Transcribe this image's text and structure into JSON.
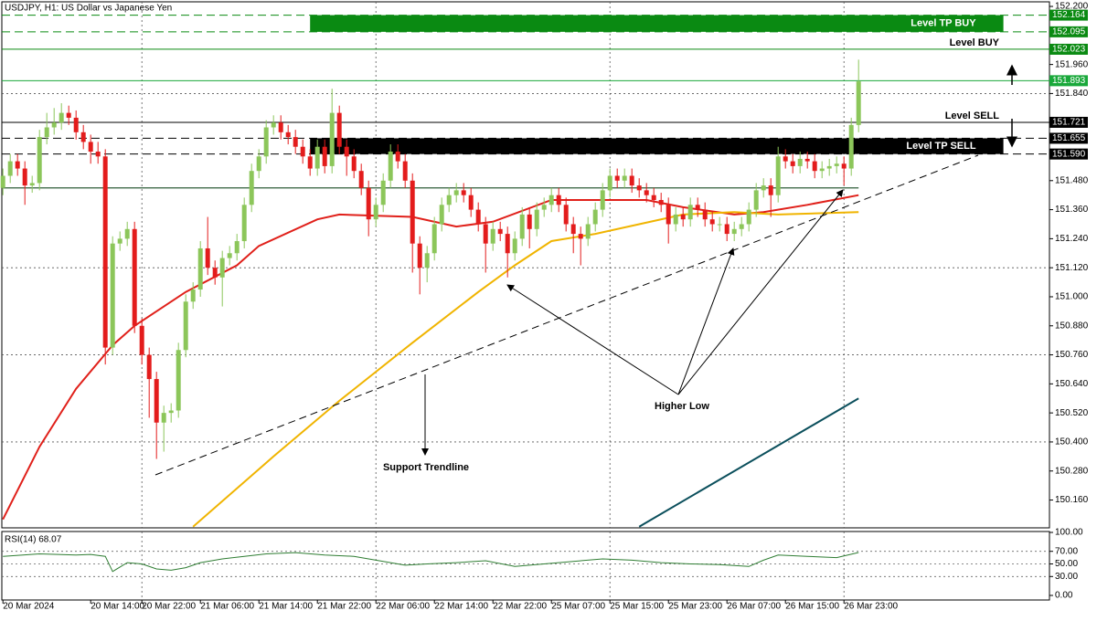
{
  "chart_data": [
    {
      "type": "candlestick",
      "title": "USDJPY, H1: US Dollar vs Japanese Yen",
      "up_color": "#8cc65a",
      "down_color": "#e31c1c",
      "xlim": [
        -0.4,
        143.1
      ],
      "ylim": [
        150.045,
        152.219
      ],
      "xticks": [
        {
          "value": 0,
          "label": "20 Mar 2024"
        },
        {
          "value": 12,
          "label": "20 Mar 14:00"
        },
        {
          "value": 19,
          "label": "20 Mar 22:00"
        },
        {
          "value": 27,
          "label": "21 Mar 06:00"
        },
        {
          "value": 35,
          "label": "21 Mar 14:00"
        },
        {
          "value": 43,
          "label": "21 Mar 22:00"
        },
        {
          "value": 51,
          "label": "22 Mar 06:00"
        },
        {
          "value": 59,
          "label": "22 Mar 14:00"
        },
        {
          "value": 67,
          "label": "22 Mar 22:00"
        },
        {
          "value": 75,
          "label": "25 Mar 07:00"
        },
        {
          "value": 83,
          "label": "25 Mar 15:00"
        },
        {
          "value": 91,
          "label": "25 Mar 23:00"
        },
        {
          "value": 99,
          "label": "26 Mar 07:00"
        },
        {
          "value": 107,
          "label": "26 Mar 15:00"
        },
        {
          "value": 115,
          "label": "26 Mar 23:00"
        }
      ],
      "yticks": [
        {
          "value": 152.2,
          "label": "152.200"
        },
        {
          "value": 151.96,
          "label": "151.960"
        },
        {
          "value": 151.84,
          "label": "151.840"
        },
        {
          "value": 151.48,
          "label": "151.480"
        },
        {
          "value": 151.36,
          "label": "151.360"
        },
        {
          "value": 151.24,
          "label": "151.240"
        },
        {
          "value": 151.12,
          "label": "151.120"
        },
        {
          "value": 151,
          "label": "151.000"
        },
        {
          "value": 150.88,
          "label": "150.880"
        },
        {
          "value": 150.76,
          "label": "150.760"
        },
        {
          "value": 150.64,
          "label": "150.640"
        },
        {
          "value": 150.52,
          "label": "150.520"
        },
        {
          "value": 150.4,
          "label": "150.400"
        },
        {
          "value": 150.28,
          "label": "150.280"
        },
        {
          "value": 150.16,
          "label": "150.160"
        }
      ],
      "candles": [
        [
          151.45,
          151.53,
          151.42,
          151.5
        ],
        [
          151.5,
          151.59,
          151.47,
          151.56
        ],
        [
          151.56,
          151.59,
          151.5,
          151.53
        ],
        [
          151.53,
          151.56,
          151.38,
          151.46
        ],
        [
          151.46,
          151.5,
          151.43,
          151.47
        ],
        [
          151.47,
          151.69,
          151.44,
          151.66
        ],
        [
          151.66,
          151.76,
          151.63,
          151.7
        ],
        [
          151.7,
          151.78,
          151.67,
          151.72
        ],
        [
          151.72,
          151.8,
          151.69,
          151.76
        ],
        [
          151.76,
          151.79,
          151.71,
          151.74
        ],
        [
          151.74,
          151.77,
          151.65,
          151.68
        ],
        [
          151.68,
          151.71,
          151.61,
          151.64
        ],
        [
          151.64,
          151.67,
          151.55,
          151.6
        ],
        [
          151.6,
          151.64,
          151.55,
          151.58
        ],
        [
          151.58,
          151.61,
          150.72,
          150.79
        ],
        [
          150.79,
          151.25,
          150.76,
          151.22
        ],
        [
          151.22,
          151.27,
          151.19,
          151.24
        ],
        [
          151.24,
          151.31,
          151.21,
          151.28
        ],
        [
          151.28,
          151.31,
          150.85,
          150.88
        ],
        [
          150.88,
          150.91,
          150.72,
          150.76
        ],
        [
          150.76,
          150.79,
          150.5,
          150.66
        ],
        [
          150.66,
          150.69,
          150.33,
          150.48
        ],
        [
          150.48,
          150.55,
          150.36,
          150.52
        ],
        [
          150.52,
          150.56,
          150.48,
          150.53
        ],
        [
          150.53,
          150.81,
          150.5,
          150.78
        ],
        [
          150.78,
          151.01,
          150.75,
          150.98
        ],
        [
          150.98,
          151.06,
          150.95,
          151.03
        ],
        [
          151.03,
          151.23,
          151.0,
          151.2
        ],
        [
          151.2,
          151.33,
          151.09,
          151.12
        ],
        [
          151.12,
          151.15,
          151.05,
          151.08
        ],
        [
          151.08,
          151.19,
          150.96,
          151.16
        ],
        [
          151.16,
          151.21,
          151.13,
          151.18
        ],
        [
          151.18,
          151.26,
          151.15,
          151.23
        ],
        [
          151.23,
          151.41,
          151.2,
          151.38
        ],
        [
          151.38,
          151.55,
          151.35,
          151.52
        ],
        [
          151.52,
          151.61,
          151.49,
          151.58
        ],
        [
          151.58,
          151.73,
          151.55,
          151.7
        ],
        [
          151.7,
          151.75,
          151.67,
          151.72
        ],
        [
          151.72,
          151.75,
          151.65,
          151.68
        ],
        [
          151.68,
          151.71,
          151.63,
          151.66
        ],
        [
          151.66,
          151.69,
          151.59,
          151.62
        ],
        [
          151.62,
          151.65,
          151.55,
          151.58
        ],
        [
          151.58,
          151.61,
          151.5,
          151.53
        ],
        [
          151.53,
          151.65,
          151.5,
          151.62
        ],
        [
          151.62,
          151.65,
          151.51,
          151.54
        ],
        [
          151.54,
          151.86,
          151.51,
          151.76
        ],
        [
          151.76,
          151.79,
          151.59,
          151.62
        ],
        [
          151.62,
          151.65,
          151.5,
          151.58
        ],
        [
          151.58,
          151.61,
          151.49,
          151.52
        ],
        [
          151.52,
          151.55,
          151.42,
          151.45
        ],
        [
          151.45,
          151.48,
          151.25,
          151.32
        ],
        [
          151.32,
          151.41,
          151.29,
          151.38
        ],
        [
          151.38,
          151.51,
          151.35,
          151.48
        ],
        [
          151.48,
          151.63,
          151.45,
          151.6
        ],
        [
          151.6,
          151.63,
          151.53,
          151.56
        ],
        [
          151.56,
          151.59,
          151.45,
          151.48
        ],
        [
          151.48,
          151.51,
          151.1,
          151.22
        ],
        [
          151.22,
          151.25,
          151.01,
          151.12
        ],
        [
          151.12,
          151.21,
          151.06,
          151.18
        ],
        [
          151.18,
          151.33,
          151.15,
          151.3
        ],
        [
          151.3,
          151.41,
          151.27,
          151.38
        ],
        [
          151.38,
          151.45,
          151.35,
          151.42
        ],
        [
          151.42,
          151.47,
          151.39,
          151.44
        ],
        [
          151.44,
          151.47,
          151.39,
          151.42
        ],
        [
          151.42,
          151.45,
          151.33,
          151.36
        ],
        [
          151.36,
          151.39,
          151.27,
          151.3
        ],
        [
          151.3,
          151.33,
          151.1,
          151.22
        ],
        [
          151.22,
          151.31,
          151.19,
          151.28
        ],
        [
          151.28,
          151.31,
          151.23,
          151.26
        ],
        [
          151.26,
          151.29,
          151.08,
          151.18
        ],
        [
          151.18,
          151.27,
          151.15,
          151.24
        ],
        [
          151.24,
          151.37,
          151.21,
          151.34
        ],
        [
          151.34,
          151.37,
          151.2,
          151.28
        ],
        [
          151.28,
          151.39,
          151.25,
          151.36
        ],
        [
          151.36,
          151.41,
          151.33,
          151.38
        ],
        [
          151.38,
          151.45,
          151.35,
          151.42
        ],
        [
          151.42,
          151.45,
          151.35,
          151.38
        ],
        [
          151.38,
          151.41,
          151.27,
          151.3
        ],
        [
          151.3,
          151.33,
          151.18,
          151.26
        ],
        [
          151.26,
          151.29,
          151.13,
          151.24
        ],
        [
          151.24,
          151.33,
          151.21,
          151.3
        ],
        [
          151.3,
          151.39,
          151.27,
          151.36
        ],
        [
          151.36,
          151.47,
          151.33,
          151.44
        ],
        [
          151.44,
          151.53,
          151.41,
          151.5
        ],
        [
          151.5,
          151.53,
          151.45,
          151.48
        ],
        [
          151.48,
          151.53,
          151.45,
          151.5
        ],
        [
          151.5,
          151.53,
          151.43,
          151.46
        ],
        [
          151.46,
          151.49,
          151.41,
          151.44
        ],
        [
          151.44,
          151.47,
          151.39,
          151.42
        ],
        [
          151.42,
          151.45,
          151.37,
          151.4
        ],
        [
          151.4,
          151.43,
          151.35,
          151.38
        ],
        [
          151.38,
          151.41,
          151.22,
          151.3
        ],
        [
          151.3,
          151.37,
          151.27,
          151.34
        ],
        [
          151.34,
          151.37,
          151.29,
          151.32
        ],
        [
          151.32,
          151.41,
          151.29,
          151.38
        ],
        [
          151.38,
          151.41,
          151.33,
          151.36
        ],
        [
          151.36,
          151.39,
          151.29,
          151.32
        ],
        [
          151.32,
          151.35,
          151.27,
          151.3
        ],
        [
          151.3,
          151.33,
          151.27,
          151.3
        ],
        [
          151.3,
          151.33,
          151.23,
          151.26
        ],
        [
          151.26,
          151.31,
          151.23,
          151.28
        ],
        [
          151.28,
          151.33,
          151.25,
          151.3
        ],
        [
          151.3,
          151.39,
          151.27,
          151.36
        ],
        [
          151.36,
          151.47,
          151.33,
          151.44
        ],
        [
          151.44,
          151.49,
          151.41,
          151.46
        ],
        [
          151.46,
          151.49,
          151.33,
          151.42
        ],
        [
          151.42,
          151.62,
          151.39,
          151.58
        ],
        [
          151.58,
          151.61,
          151.53,
          151.56
        ],
        [
          151.56,
          151.59,
          151.51,
          151.54
        ],
        [
          151.54,
          151.6,
          151.51,
          151.57
        ],
        [
          151.57,
          151.6,
          151.53,
          151.56
        ],
        [
          151.56,
          151.59,
          151.49,
          151.52
        ],
        [
          151.52,
          151.56,
          151.49,
          151.53
        ],
        [
          151.53,
          151.57,
          151.5,
          151.54
        ],
        [
          151.54,
          151.58,
          151.51,
          151.55
        ],
        [
          151.55,
          151.58,
          151.46,
          151.53
        ],
        [
          151.53,
          151.74,
          151.5,
          151.71
        ],
        [
          151.71,
          151.98,
          151.68,
          151.89
        ]
      ],
      "lines": [
        {
          "color": "#e0201a",
          "x": [
            0,
            5,
            10,
            15,
            18,
            25,
            32,
            35,
            43,
            46,
            56,
            62,
            67,
            75,
            88,
            93,
            100,
            104,
            110,
            117
          ],
          "values": [
            150.08,
            150.38,
            150.62,
            150.8,
            150.88,
            151.02,
            151.13,
            151.21,
            151.32,
            151.34,
            151.33,
            151.29,
            151.31,
            151.4,
            151.4,
            151.37,
            151.34,
            151.35,
            151.38,
            151.42
          ]
        },
        {
          "color": "#f0b400",
          "x": [
            26,
            37,
            46,
            56,
            65,
            70,
            75,
            81,
            87,
            93,
            100,
            106,
            117
          ],
          "values": [
            150.05,
            150.34,
            150.57,
            150.81,
            151.02,
            151.13,
            151.23,
            151.26,
            151.3,
            151.34,
            151.35,
            151.34,
            151.35
          ]
        },
        {
          "color": "#0b4f5c",
          "x": [
            87,
            117
          ],
          "values": [
            150.05,
            150.58
          ]
        }
      ],
      "hline": {
        "value": 151.45,
        "color": "#2f5d3a",
        "xrange": [
          0,
          117
        ]
      },
      "zones": [
        {
          "low": 152.095,
          "high": 152.164,
          "xrange": [
            42,
            136.8
          ],
          "color": "#0a8a12",
          "name": "Level TP BUY"
        },
        {
          "low": 151.59,
          "high": 151.655,
          "xrange": [
            42,
            136.8
          ],
          "color": "#000000",
          "name": "Level TP SELL"
        }
      ],
      "levels": [
        {
          "value": 152.164,
          "color": "#0a8a12",
          "dash": true
        },
        {
          "value": 152.095,
          "color": "#0a8a12",
          "dash": true
        },
        {
          "value": 152.023,
          "color": "#0a8a12",
          "dash": false,
          "name": "Level BUY"
        },
        {
          "value": 151.893,
          "color": "#19a83a",
          "dash": false
        },
        {
          "value": 151.721,
          "color": "#000000",
          "dash": false,
          "name": "Level SELL"
        },
        {
          "value": 151.655,
          "color": "#000000",
          "dash": true
        },
        {
          "value": 151.59,
          "label": "151.590",
          "color": "#000000",
          "dash": true
        }
      ],
      "annotations": [
        "Higher Low",
        "Support Trendline"
      ]
    },
    {
      "type": "line",
      "title": "RSI(14) 68.07",
      "color": "#2e7d32",
      "xlim": [
        -0.4,
        143.1
      ],
      "ylim": [
        0,
        100
      ],
      "yticks": [
        {
          "value": 100,
          "label": "100.00"
        },
        {
          "value": 70,
          "label": "70.00"
        },
        {
          "value": 50,
          "label": "50.00"
        },
        {
          "value": 30,
          "label": "30.00"
        },
        {
          "value": 0,
          "label": "0.00"
        }
      ],
      "x": [
        0,
        5,
        10,
        12,
        14,
        15,
        17,
        19,
        21,
        23,
        25,
        27,
        30,
        33,
        36,
        40,
        44,
        48,
        52,
        55,
        58,
        62,
        66,
        70,
        74,
        78,
        82,
        86,
        90,
        94,
        98,
        102,
        104,
        106,
        110,
        114,
        117
      ],
      "values": [
        62,
        66,
        64,
        65,
        62,
        38,
        52,
        50,
        42,
        40,
        44,
        52,
        58,
        62,
        66,
        68,
        64,
        62,
        54,
        48,
        50,
        52,
        55,
        46,
        50,
        54,
        58,
        56,
        52,
        50,
        49,
        46,
        56,
        64,
        62,
        60,
        68.07
      ]
    }
  ]
}
